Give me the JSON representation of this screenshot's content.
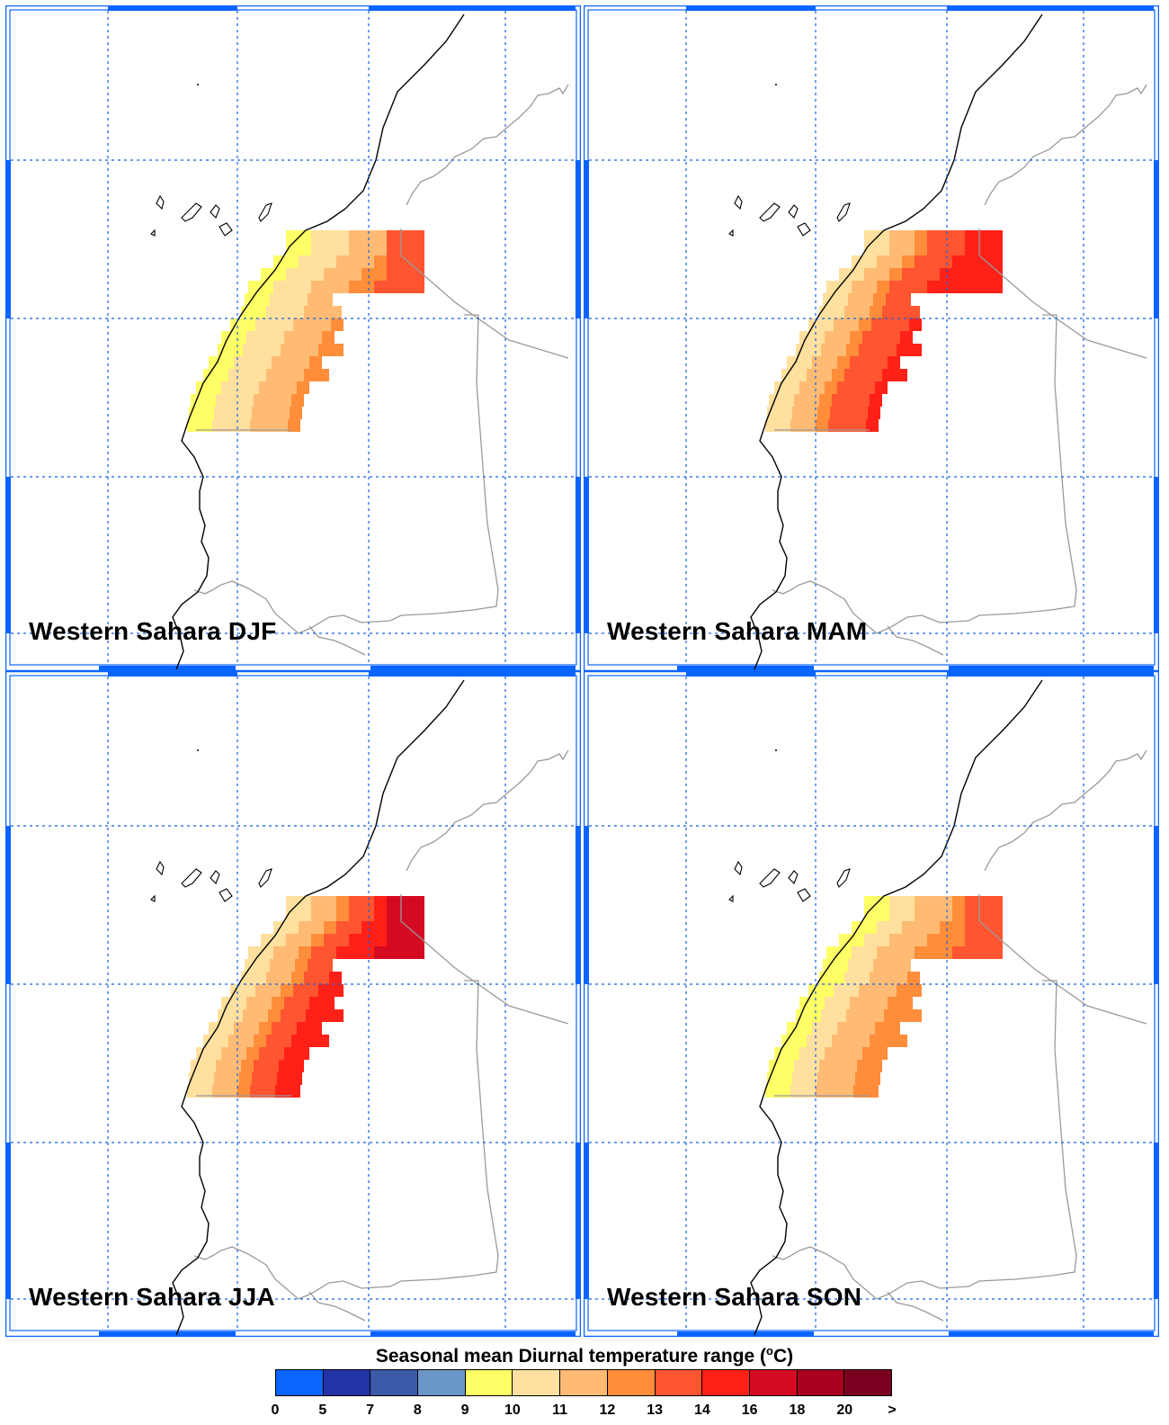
{
  "panels": [
    {
      "id": "djf",
      "title": "Western Sahara DJF",
      "season": "DJF"
    },
    {
      "id": "mam",
      "title": "Western Sahara MAM",
      "season": "MAM"
    },
    {
      "id": "jja",
      "title": "Western Sahara JJA",
      "season": "JJA"
    },
    {
      "id": "son",
      "title": "Western Sahara SON",
      "season": "SON"
    }
  ],
  "legend": {
    "title_prefix": "Seasonal mean Diurnal temperature range (",
    "title_unit_sup": "o",
    "title_suffix": "C)",
    "colors": [
      "#0a64ff",
      "#2233a6",
      "#3a5aa8",
      "#6b96c8",
      "#ffff66",
      "#ffe09e",
      "#ffbb74",
      "#ff8d3a",
      "#ff5530",
      "#ff2018",
      "#d40a22",
      "#a8001e",
      "#7a0020"
    ],
    "tick_labels": [
      "0",
      "5",
      "7",
      "8",
      "9",
      "10",
      "11",
      "12",
      "13",
      "14",
      "16",
      "18",
      "20",
      ">"
    ]
  },
  "colors": {
    "frame": "#0a64ff",
    "gridline": "#1560e0",
    "coastline": "#000000",
    "border": "#9a9a9a"
  }
}
